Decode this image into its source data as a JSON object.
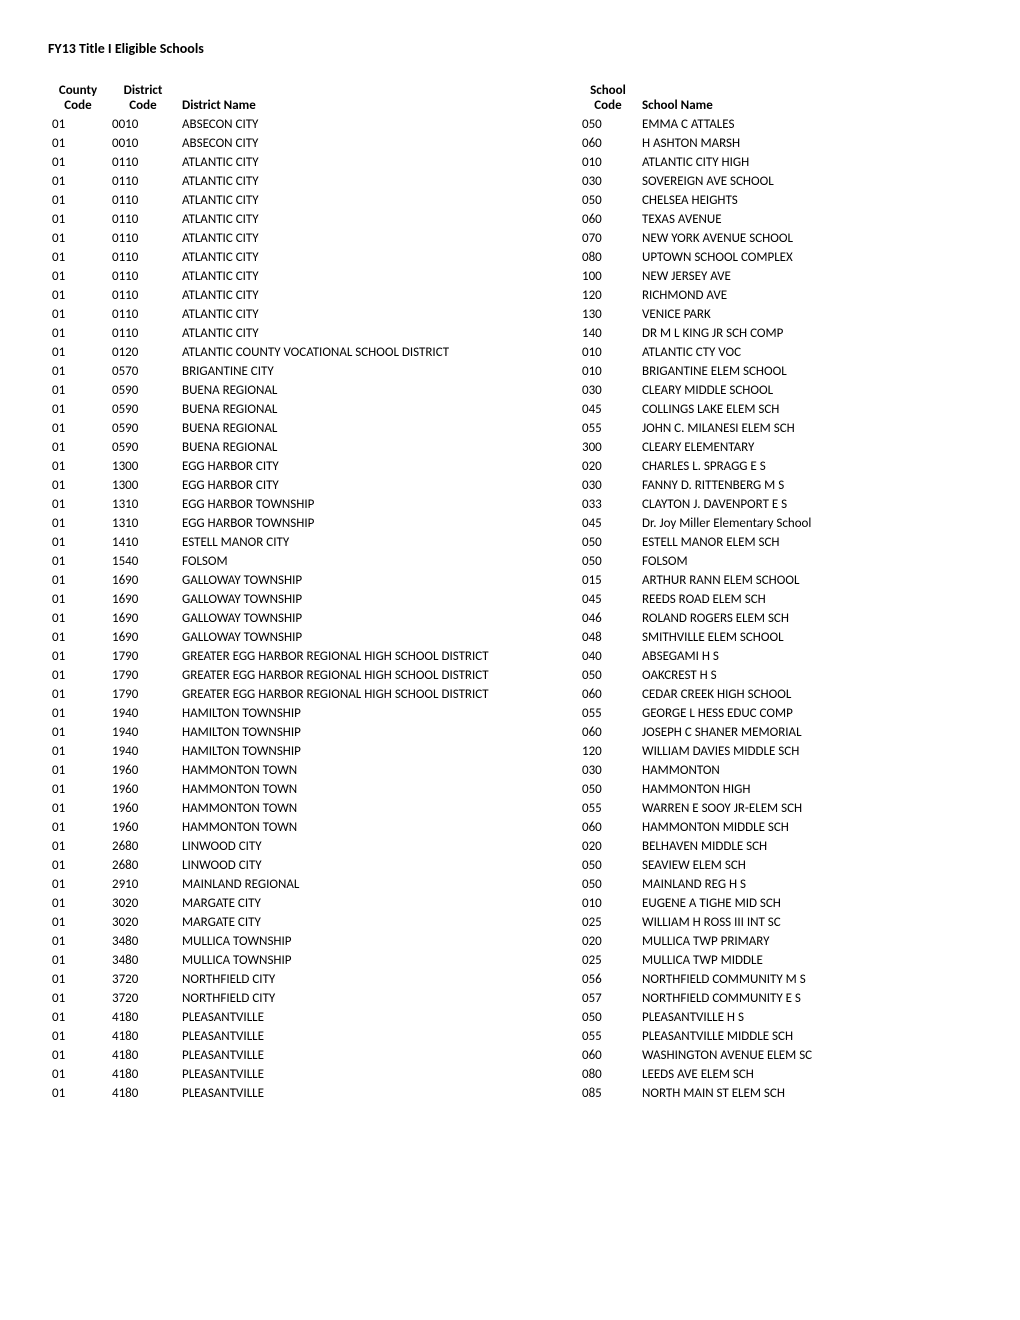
{
  "title": "FY13 Title I Eligible Schools",
  "headers": {
    "county_code_line1": "County",
    "county_code_line2": "Code",
    "district_code_line1": "District",
    "district_code_line2": "Code",
    "district_name": "District Name",
    "school_code_line1": "School",
    "school_code_line2": "Code",
    "school_name": "School Name"
  },
  "rows": [
    {
      "county": "01",
      "district": "0010",
      "district_name": "ABSECON CITY",
      "school": "050",
      "school_name": "EMMA C ATTALES"
    },
    {
      "county": "01",
      "district": "0010",
      "district_name": "ABSECON CITY",
      "school": "060",
      "school_name": "H ASHTON MARSH"
    },
    {
      "county": "01",
      "district": "0110",
      "district_name": "ATLANTIC CITY",
      "school": "010",
      "school_name": "ATLANTIC CITY HIGH"
    },
    {
      "county": "01",
      "district": "0110",
      "district_name": "ATLANTIC CITY",
      "school": "030",
      "school_name": "SOVEREIGN AVE SCHOOL"
    },
    {
      "county": "01",
      "district": "0110",
      "district_name": "ATLANTIC CITY",
      "school": "050",
      "school_name": "CHELSEA HEIGHTS"
    },
    {
      "county": "01",
      "district": "0110",
      "district_name": "ATLANTIC CITY",
      "school": "060",
      "school_name": "TEXAS AVENUE"
    },
    {
      "county": "01",
      "district": "0110",
      "district_name": "ATLANTIC CITY",
      "school": "070",
      "school_name": "NEW YORK AVENUE SCHOOL"
    },
    {
      "county": "01",
      "district": "0110",
      "district_name": "ATLANTIC CITY",
      "school": "080",
      "school_name": "UPTOWN SCHOOL COMPLEX"
    },
    {
      "county": "01",
      "district": "0110",
      "district_name": "ATLANTIC CITY",
      "school": "100",
      "school_name": "NEW JERSEY AVE"
    },
    {
      "county": "01",
      "district": "0110",
      "district_name": "ATLANTIC CITY",
      "school": "120",
      "school_name": "RICHMOND AVE"
    },
    {
      "county": "01",
      "district": "0110",
      "district_name": "ATLANTIC CITY",
      "school": "130",
      "school_name": "VENICE PARK"
    },
    {
      "county": "01",
      "district": "0110",
      "district_name": "ATLANTIC CITY",
      "school": "140",
      "school_name": "DR M L KING JR SCH COMP"
    },
    {
      "county": "01",
      "district": "0120",
      "district_name": "ATLANTIC COUNTY VOCATIONAL SCHOOL DISTRICT",
      "school": "010",
      "school_name": "ATLANTIC CTY VOC"
    },
    {
      "county": "01",
      "district": "0570",
      "district_name": "BRIGANTINE CITY",
      "school": "010",
      "school_name": "BRIGANTINE ELEM SCHOOL"
    },
    {
      "county": "01",
      "district": "0590",
      "district_name": "BUENA REGIONAL",
      "school": "030",
      "school_name": "CLEARY MIDDLE SCHOOL"
    },
    {
      "county": "01",
      "district": "0590",
      "district_name": "BUENA REGIONAL",
      "school": "045",
      "school_name": "COLLINGS LAKE ELEM SCH"
    },
    {
      "county": "01",
      "district": "0590",
      "district_name": "BUENA REGIONAL",
      "school": "055",
      "school_name": "JOHN C. MILANESI ELEM SCH"
    },
    {
      "county": "01",
      "district": "0590",
      "district_name": "BUENA REGIONAL",
      "school": "300",
      "school_name": "CLEARY ELEMENTARY"
    },
    {
      "county": "01",
      "district": "1300",
      "district_name": "EGG HARBOR CITY",
      "school": "020",
      "school_name": "CHARLES L. SPRAGG E S"
    },
    {
      "county": "01",
      "district": "1300",
      "district_name": "EGG HARBOR CITY",
      "school": "030",
      "school_name": "FANNY D. RITTENBERG M S"
    },
    {
      "county": "01",
      "district": "1310",
      "district_name": "EGG HARBOR TOWNSHIP",
      "school": "033",
      "school_name": "CLAYTON J. DAVENPORT E S"
    },
    {
      "county": "01",
      "district": "1310",
      "district_name": "EGG HARBOR TOWNSHIP",
      "school": "045",
      "school_name": "Dr. Joy Miller Elementary School"
    },
    {
      "county": "01",
      "district": "1410",
      "district_name": "ESTELL MANOR CITY",
      "school": "050",
      "school_name": "ESTELL MANOR ELEM SCH"
    },
    {
      "county": "01",
      "district": "1540",
      "district_name": "FOLSOM",
      "school": "050",
      "school_name": "FOLSOM"
    },
    {
      "county": "01",
      "district": "1690",
      "district_name": "GALLOWAY TOWNSHIP",
      "school": "015",
      "school_name": "ARTHUR RANN ELEM SCHOOL"
    },
    {
      "county": "01",
      "district": "1690",
      "district_name": "GALLOWAY TOWNSHIP",
      "school": "045",
      "school_name": "REEDS ROAD ELEM SCH"
    },
    {
      "county": "01",
      "district": "1690",
      "district_name": "GALLOWAY TOWNSHIP",
      "school": "046",
      "school_name": "ROLAND ROGERS ELEM SCH"
    },
    {
      "county": "01",
      "district": "1690",
      "district_name": "GALLOWAY TOWNSHIP",
      "school": "048",
      "school_name": "SMITHVILLE ELEM SCHOOL"
    },
    {
      "county": "01",
      "district": "1790",
      "district_name": "GREATER EGG HARBOR REGIONAL HIGH SCHOOL DISTRICT",
      "school": "040",
      "school_name": "ABSEGAMI H S"
    },
    {
      "county": "01",
      "district": "1790",
      "district_name": "GREATER EGG HARBOR REGIONAL HIGH SCHOOL DISTRICT",
      "school": "050",
      "school_name": "OAKCREST H S"
    },
    {
      "county": "01",
      "district": "1790",
      "district_name": "GREATER EGG HARBOR REGIONAL HIGH SCHOOL DISTRICT",
      "school": "060",
      "school_name": "CEDAR CREEK HIGH SCHOOL"
    },
    {
      "county": "01",
      "district": "1940",
      "district_name": "HAMILTON TOWNSHIP",
      "school": "055",
      "school_name": "GEORGE L HESS EDUC COMP"
    },
    {
      "county": "01",
      "district": "1940",
      "district_name": "HAMILTON TOWNSHIP",
      "school": "060",
      "school_name": "JOSEPH C SHANER MEMORIAL"
    },
    {
      "county": "01",
      "district": "1940",
      "district_name": "HAMILTON TOWNSHIP",
      "school": "120",
      "school_name": "WILLIAM DAVIES MIDDLE SCH"
    },
    {
      "county": "01",
      "district": "1960",
      "district_name": "HAMMONTON TOWN",
      "school": "030",
      "school_name": "HAMMONTON"
    },
    {
      "county": "01",
      "district": "1960",
      "district_name": "HAMMONTON TOWN",
      "school": "050",
      "school_name": "HAMMONTON HIGH"
    },
    {
      "county": "01",
      "district": "1960",
      "district_name": "HAMMONTON TOWN",
      "school": "055",
      "school_name": "WARREN E SOOY JR-ELEM SCH"
    },
    {
      "county": "01",
      "district": "1960",
      "district_name": "HAMMONTON TOWN",
      "school": "060",
      "school_name": "HAMMONTON MIDDLE SCH"
    },
    {
      "county": "01",
      "district": "2680",
      "district_name": "LINWOOD CITY",
      "school": "020",
      "school_name": "BELHAVEN MIDDLE SCH"
    },
    {
      "county": "01",
      "district": "2680",
      "district_name": "LINWOOD CITY",
      "school": "050",
      "school_name": "SEAVIEW ELEM SCH"
    },
    {
      "county": "01",
      "district": "2910",
      "district_name": "MAINLAND REGIONAL",
      "school": "050",
      "school_name": "MAINLAND REG H S"
    },
    {
      "county": "01",
      "district": "3020",
      "district_name": "MARGATE CITY",
      "school": "010",
      "school_name": "EUGENE A TIGHE MID SCH"
    },
    {
      "county": "01",
      "district": "3020",
      "district_name": "MARGATE CITY",
      "school": "025",
      "school_name": "WILLIAM H ROSS III INT SC"
    },
    {
      "county": "01",
      "district": "3480",
      "district_name": "MULLICA TOWNSHIP",
      "school": "020",
      "school_name": "MULLICA TWP PRIMARY"
    },
    {
      "county": "01",
      "district": "3480",
      "district_name": "MULLICA TOWNSHIP",
      "school": "025",
      "school_name": "MULLICA TWP MIDDLE"
    },
    {
      "county": "01",
      "district": "3720",
      "district_name": "NORTHFIELD CITY",
      "school": "056",
      "school_name": "NORTHFIELD COMMUNITY M S"
    },
    {
      "county": "01",
      "district": "3720",
      "district_name": "NORTHFIELD CITY",
      "school": "057",
      "school_name": "NORTHFIELD COMMUNITY E S"
    },
    {
      "county": "01",
      "district": "4180",
      "district_name": "PLEASANTVILLE",
      "school": "050",
      "school_name": "PLEASANTVILLE H S"
    },
    {
      "county": "01",
      "district": "4180",
      "district_name": "PLEASANTVILLE",
      "school": "055",
      "school_name": "PLEASANTVILLE MIDDLE SCH"
    },
    {
      "county": "01",
      "district": "4180",
      "district_name": "PLEASANTVILLE",
      "school": "060",
      "school_name": "WASHINGTON AVENUE ELEM SC"
    },
    {
      "county": "01",
      "district": "4180",
      "district_name": "PLEASANTVILLE",
      "school": "080",
      "school_name": "LEEDS AVE ELEM SCH"
    },
    {
      "county": "01",
      "district": "4180",
      "district_name": "PLEASANTVILLE",
      "school": "085",
      "school_name": "NORTH MAIN ST ELEM SCH"
    }
  ]
}
